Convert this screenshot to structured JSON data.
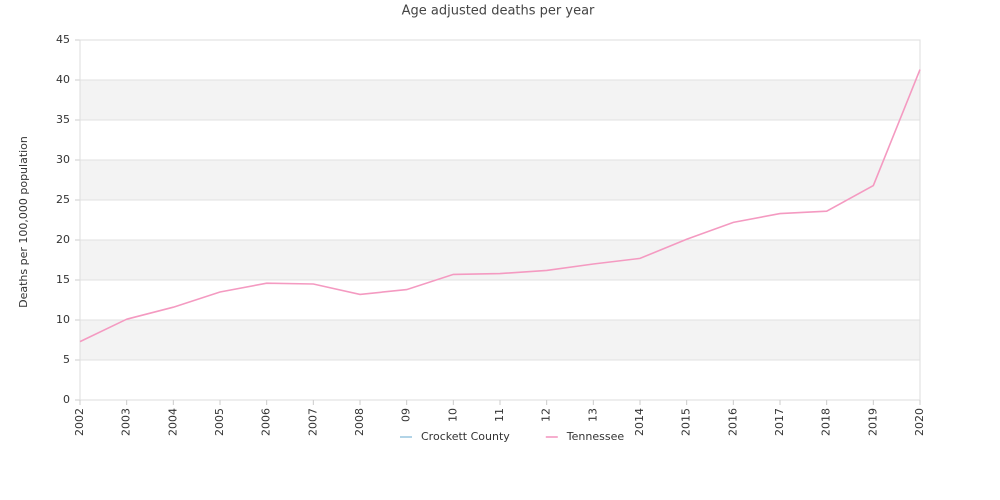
{
  "chart_data": {
    "type": "line",
    "title": "Age adjusted deaths per year",
    "y_label": "Deaths per 100,000 population",
    "categories": [
      "2002",
      "2003",
      "2004",
      "2005",
      "2006",
      "2007",
      "2008",
      "09",
      "10",
      "11",
      "12",
      "13",
      "2014",
      "2015",
      "2016",
      "2017",
      "2018",
      "2019",
      "2020"
    ],
    "series": [
      {
        "name": "Crockett County",
        "color": "#9ecae1",
        "values": [
          null,
          null,
          null,
          null,
          null,
          null,
          null,
          null,
          null,
          null,
          null,
          null,
          null,
          null,
          null,
          null,
          null,
          null,
          null
        ]
      },
      {
        "name": "Tennessee",
        "color": "#f49ac1",
        "values": [
          7.3,
          10.1,
          11.6,
          13.5,
          14.6,
          14.5,
          13.2,
          13.8,
          15.7,
          15.8,
          16.2,
          17.0,
          17.7,
          20.1,
          22.2,
          23.3,
          23.6,
          26.8,
          41.3
        ]
      }
    ],
    "ylim": [
      0,
      45
    ],
    "yticks": [
      0,
      5,
      10,
      15,
      20,
      25,
      30,
      35,
      40,
      45
    ],
    "grid": true,
    "legend": "bottom"
  }
}
